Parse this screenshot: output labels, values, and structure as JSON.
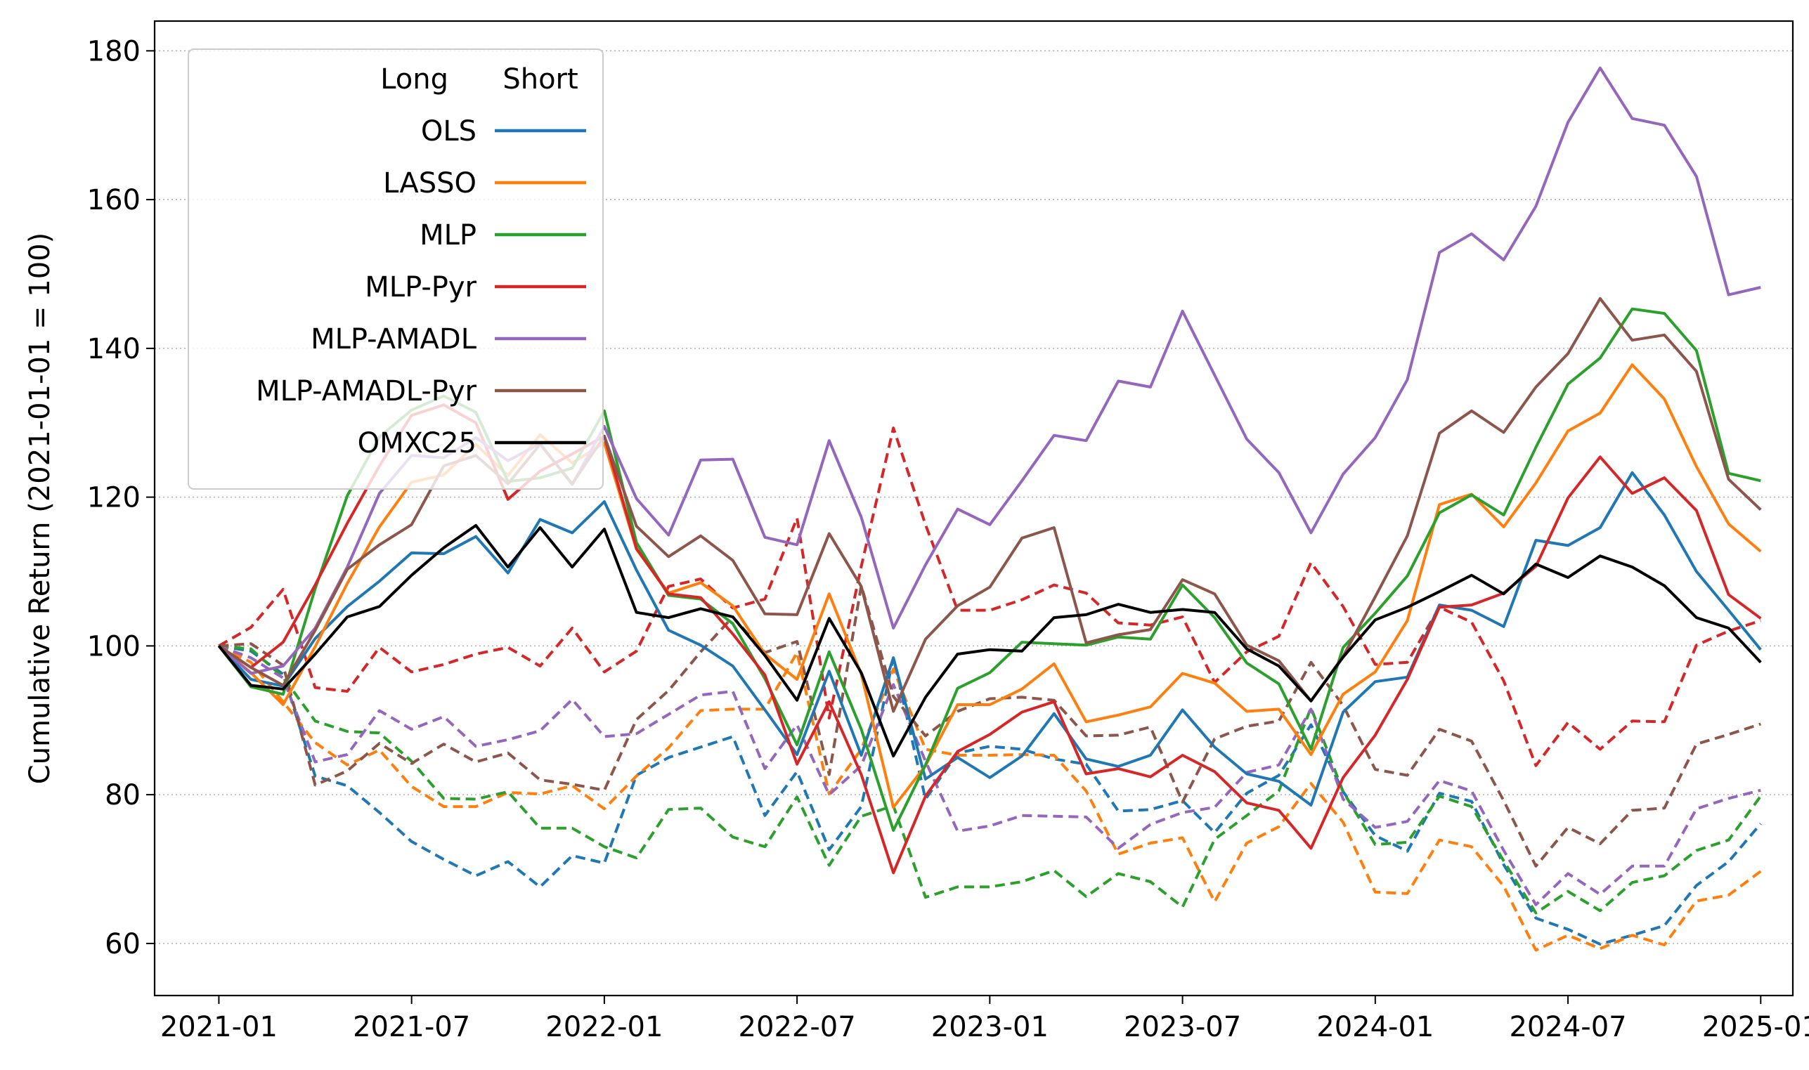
{
  "chart_data": {
    "type": "line",
    "title": "",
    "xlabel": "",
    "ylabel": "Cumulative Return (2021-01-01 = 100)",
    "xlim": [
      "2020-11-01",
      "2025-02-01"
    ],
    "ylim": [
      53,
      184
    ],
    "x_ticks": [
      "2021-01",
      "2021-07",
      "2022-01",
      "2022-07",
      "2023-01",
      "2023-07",
      "2024-01",
      "2024-07",
      "2025-01"
    ],
    "y_ticks": [
      60,
      80,
      100,
      120,
      140,
      160,
      180
    ],
    "grid": "horizontal dotted",
    "legend": {
      "placement": "top-left",
      "header_long": "Long",
      "header_short": "Short",
      "note": "solid = Long, dashed = Short"
    },
    "dates": [
      "2021-01",
      "2021-02",
      "2021-03",
      "2021-04",
      "2021-05",
      "2021-06",
      "2021-07",
      "2021-08",
      "2021-09",
      "2021-10",
      "2021-11",
      "2021-12",
      "2022-01",
      "2022-02",
      "2022-03",
      "2022-04",
      "2022-05",
      "2022-06",
      "2022-07",
      "2022-08",
      "2022-09",
      "2022-10",
      "2022-11",
      "2022-12",
      "2023-01",
      "2023-02",
      "2023-03",
      "2023-04",
      "2023-05",
      "2023-06",
      "2023-07",
      "2023-08",
      "2023-09",
      "2023-10",
      "2023-11",
      "2023-12",
      "2024-01",
      "2024-02",
      "2024-03",
      "2024-04",
      "2024-05",
      "2024-06",
      "2024-07",
      "2024-08",
      "2024-09",
      "2024-10",
      "2024-11",
      "2024-12",
      "2025-01"
    ],
    "series": [
      {
        "name": "OLS",
        "color": "#1f77b4",
        "long": [
          100,
          95.5,
          94.6,
          101,
          105.3,
          108.7,
          112.5,
          112.4,
          114.7,
          109.8,
          117,
          115.2,
          119.4,
          110.2,
          102.1,
          100.1,
          97.3,
          91.4,
          85.4,
          96.6,
          85.3,
          98.4,
          82.1,
          85,
          82.3,
          85.2,
          90.9,
          84.8,
          83.8,
          85.3,
          91.4,
          86.4,
          82.8,
          81.8,
          78.6,
          91.1,
          95.2,
          95.8,
          105.5,
          104.8,
          102.6,
          114.2,
          113.5,
          115.9,
          123.3,
          117.6,
          110,
          104.8,
          99.5
        ],
        "short": [
          100,
          99.3,
          96.2,
          82.5,
          81.2,
          77.6,
          73.7,
          71.3,
          69.1,
          71,
          67.6,
          71.8,
          70.8,
          82.6,
          85,
          86.4,
          87.8,
          77.2,
          83.1,
          72.6,
          78.4,
          98.4,
          79.4,
          85.6,
          86.5,
          86.1,
          84.8,
          84.1,
          77.8,
          78,
          79.2,
          74.9,
          80.2,
          82.6,
          89.4,
          80.4,
          74.5,
          72.4,
          80.2,
          79.1,
          70.6,
          63.4,
          61.9,
          59.9,
          61.1,
          62.4,
          67.8,
          71,
          76.1
        ]
      },
      {
        "name": "LASSO",
        "color": "#ff7f0e",
        "long": [
          100,
          96.4,
          92.1,
          99.9,
          108.4,
          116,
          122,
          123,
          127.1,
          122.9,
          128.4,
          124.6,
          127.3,
          113,
          107.1,
          108.5,
          105.4,
          98.9,
          95.5,
          107,
          96.2,
          78.3,
          83.9,
          92.1,
          92.1,
          94.2,
          97.6,
          89.8,
          90.7,
          91.8,
          96.3,
          95,
          91.2,
          91.5,
          85.4,
          93.5,
          96.5,
          103.4,
          119,
          120.4,
          116,
          121.9,
          128.9,
          131.3,
          137.8,
          133.2,
          124.1,
          116.4,
          112.7
        ],
        "short": [
          100,
          97.8,
          92.5,
          87,
          84,
          86,
          81.1,
          78.4,
          78.4,
          80.3,
          80.1,
          81.2,
          78.1,
          82.5,
          86.3,
          91.3,
          91.5,
          91.5,
          99.1,
          80.1,
          86.1,
          96.9,
          86.1,
          85.3,
          85.3,
          85.4,
          85.3,
          80.5,
          72,
          73.5,
          74.2,
          65.6,
          73.5,
          75.7,
          81.5,
          76.3,
          66.9,
          66.7,
          73.9,
          73,
          67.7,
          59.1,
          61.1,
          59.3,
          61.1,
          59.8,
          65.7,
          66.5,
          69.7
        ]
      },
      {
        "name": "MLP",
        "color": "#2ca02c",
        "long": [
          100,
          94.5,
          93.5,
          107.7,
          120.2,
          128.1,
          131.7,
          133.6,
          131.4,
          122.1,
          122.6,
          123.9,
          131.6,
          113.9,
          106.8,
          106.3,
          103,
          95.6,
          86.7,
          99.2,
          88.8,
          75.2,
          84,
          94.3,
          96.4,
          100.5,
          100.3,
          100.1,
          101.2,
          100.9,
          108.2,
          103.8,
          97.7,
          94.9,
          86.1,
          99.8,
          104.4,
          109.4,
          117.9,
          120.3,
          117.6,
          126.7,
          135.2,
          138.7,
          145.3,
          144.7,
          139.7,
          123.2,
          122.2
        ],
        "short": [
          100,
          99.6,
          95.8,
          89.9,
          88.5,
          88.3,
          84.5,
          79.5,
          79.4,
          80.4,
          75.5,
          75.5,
          73,
          71.5,
          78,
          78.2,
          74.3,
          73,
          79.7,
          70.5,
          77.1,
          78.5,
          66.2,
          67.6,
          67.6,
          68.3,
          69.8,
          66.3,
          69.4,
          68.3,
          64.9,
          74,
          77.2,
          80.5,
          91.7,
          80.4,
          73.3,
          73.6,
          79.8,
          78.4,
          71.1,
          64.1,
          67,
          64.4,
          68.2,
          69.1,
          72.5,
          73.9,
          79.8
        ]
      },
      {
        "name": "MLP-Pyr",
        "color": "#d62728",
        "long": [
          100,
          97.1,
          100.5,
          108.2,
          116.5,
          124.2,
          131,
          132.4,
          130,
          119.7,
          123.5,
          125.8,
          128.2,
          113.1,
          107,
          106.5,
          101.6,
          96.1,
          84.1,
          92.5,
          82.7,
          69.5,
          79.8,
          85.8,
          88.1,
          91.1,
          92.5,
          82.8,
          83.5,
          82.4,
          85.3,
          83.1,
          78.9,
          77.9,
          72.8,
          82.3,
          88,
          95.5,
          105.2,
          105.5,
          107.1,
          110.7,
          119.9,
          125.4,
          120.5,
          122.6,
          118.2,
          106.9,
          103.7
        ],
        "short": [
          100,
          102.5,
          107.6,
          94.4,
          93.9,
          99.8,
          96.5,
          97.5,
          98.9,
          99.8,
          97.3,
          102.4,
          96.5,
          99.3,
          108,
          109,
          105.1,
          106.3,
          117.2,
          90.3,
          110.7,
          129.3,
          116.3,
          104.8,
          104.8,
          106.2,
          108.2,
          107.1,
          103.1,
          102.8,
          103.9,
          95.1,
          99.2,
          101.3,
          111.2,
          105.3,
          97.5,
          97.8,
          105.2,
          103.2,
          95.3,
          83.9,
          89.7,
          86.1,
          89.9,
          89.8,
          100.1,
          102,
          103.4
        ]
      },
      {
        "name": "MLP-AMADL",
        "color": "#9467bd",
        "long": [
          100,
          96.3,
          97.3,
          102.4,
          110.6,
          120.5,
          125.6,
          125.3,
          128,
          124.9,
          127.2,
          121.7,
          129.5,
          119.8,
          114.9,
          125,
          125.1,
          114.6,
          113.6,
          127.6,
          117.3,
          102.4,
          110.9,
          118.4,
          116.3,
          122.2,
          128.3,
          127.6,
          135.6,
          134.8,
          145,
          136.4,
          127.8,
          123.3,
          115.2,
          123.1,
          128,
          135.8,
          152.9,
          155.4,
          151.9,
          159.1,
          170.4,
          177.7,
          170.9,
          170,
          163.1,
          147.2,
          148.2
        ],
        "short": [
          100,
          98.4,
          95.7,
          84.4,
          85.4,
          91.3,
          88.8,
          90.5,
          86.5,
          87.4,
          88.6,
          92.8,
          87.8,
          88.2,
          90.8,
          93.4,
          93.9,
          83.5,
          89.4,
          80,
          83.9,
          94.8,
          84.5,
          75.1,
          75.8,
          77.2,
          77.1,
          77,
          72.8,
          76,
          77.6,
          78.3,
          83,
          84,
          91.5,
          79.4,
          75.6,
          76.4,
          81.9,
          80.5,
          72.5,
          65.2,
          69.4,
          66.6,
          70.4,
          70.4,
          78.1,
          79.5,
          80.6
        ]
      },
      {
        "name": "MLP-AMADL-Pyr",
        "color": "#8c564b",
        "long": [
          100,
          97.1,
          94.7,
          102.1,
          110.3,
          113.6,
          116.3,
          124.2,
          125.6,
          121.8,
          127.1,
          121.8,
          128.2,
          116.1,
          112,
          114.8,
          111.5,
          104.3,
          104.2,
          115.1,
          108,
          91.2,
          100.9,
          105.4,
          107.9,
          114.5,
          115.9,
          100.4,
          101.5,
          102.2,
          108.9,
          107,
          100.1,
          98,
          92.6,
          98.6,
          106.6,
          114.8,
          128.6,
          131.6,
          128.7,
          134.8,
          139.3,
          146.7,
          141.1,
          141.8,
          136.9,
          122.4,
          118.3
        ],
        "short": [
          100,
          100.3,
          97.4,
          81.3,
          83.2,
          86.9,
          84.2,
          86.8,
          84.4,
          85.6,
          82,
          81.4,
          80.6,
          90.1,
          94,
          99.2,
          103.9,
          99.1,
          100.6,
          82.7,
          108.1,
          93.2,
          87.9,
          91.2,
          92.9,
          93.1,
          92.7,
          87.9,
          88,
          89.1,
          79,
          87.5,
          89.2,
          89.9,
          97.8,
          92,
          83.4,
          82.6,
          88.8,
          87.2,
          79.2,
          70.4,
          75.6,
          73.4,
          77.9,
          78.2,
          86.8,
          88.1,
          89.5
        ]
      },
      {
        "name": "OMXC25",
        "color": "#000000",
        "long": [
          100,
          94.7,
          94.2,
          98.9,
          103.9,
          105.3,
          109.5,
          113.2,
          116.2,
          110.6,
          115.9,
          110.6,
          115.7,
          104.5,
          103.8,
          105,
          103.9,
          98.7,
          92.7,
          103.7,
          96.4,
          85.2,
          93.1,
          98.9,
          99.5,
          99.3,
          103.8,
          104.2,
          105.6,
          104.5,
          104.9,
          104.5,
          99.6,
          97.3,
          92.6,
          98.5,
          103.5,
          105.2,
          107.3,
          109.5,
          107,
          111,
          109.2,
          112.1,
          110.6,
          108.1,
          103.8,
          102.4,
          97.8
        ],
        "short": null
      }
    ]
  }
}
